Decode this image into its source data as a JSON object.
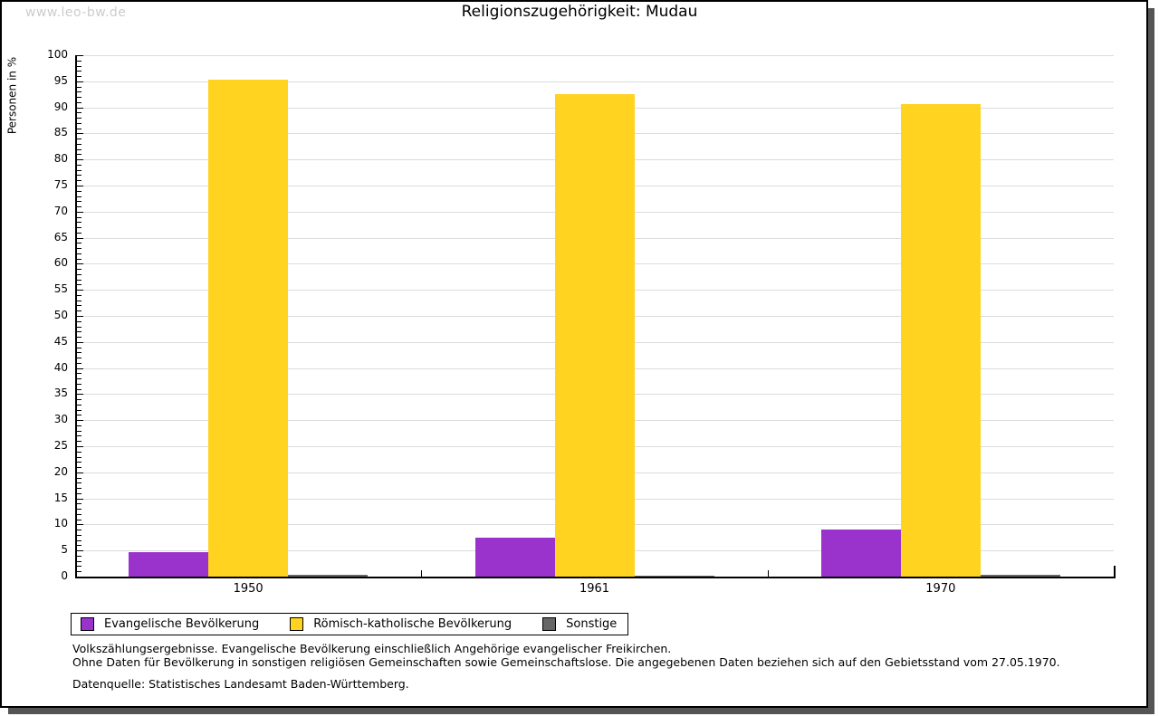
{
  "watermark": "www.leo-bw.de",
  "title": "Religionszugehörigkeit: Mudau",
  "chart_data": {
    "type": "bar",
    "categories": [
      "1950",
      "1961",
      "1970"
    ],
    "series": [
      {
        "name": "Evangelische Bevölkerung",
        "color": "#9933CC",
        "values": [
          4.7,
          7.4,
          9.0
        ]
      },
      {
        "name": "Römisch-katholische Bevölkerung",
        "color": "#FFD320",
        "values": [
          95.3,
          92.5,
          90.7
        ]
      },
      {
        "name": "Sonstige",
        "color": "#666666",
        "values": [
          0.3,
          0.1,
          0.4
        ]
      }
    ],
    "title": "Religionszugehörigkeit: Mudau",
    "xlabel": "",
    "ylabel": "Personen in %",
    "ylim": [
      0,
      100
    ],
    "ytick_major": 5,
    "ytick_minor": 1,
    "grid": true,
    "legend_position": "bottom"
  },
  "colors": {
    "grid": "#DCDCDC",
    "axis": "#000000",
    "watermark": "#CCCCCC",
    "frame_shadow": "#555555"
  },
  "footer": {
    "line1": "Volkszählungsergebnisse. Evangelische Bevölkerung einschließlich Angehörige evangelischer Freikirchen.",
    "line2": "Ohne Daten für Bevölkerung in sonstigen religiösen Gemeinschaften sowie Gemeinschaftslose. Die angegebenen Daten beziehen sich auf den Gebietsstand vom 27.05.1970.",
    "source": "Datenquelle: Statistisches Landesamt Baden-Württemberg."
  }
}
